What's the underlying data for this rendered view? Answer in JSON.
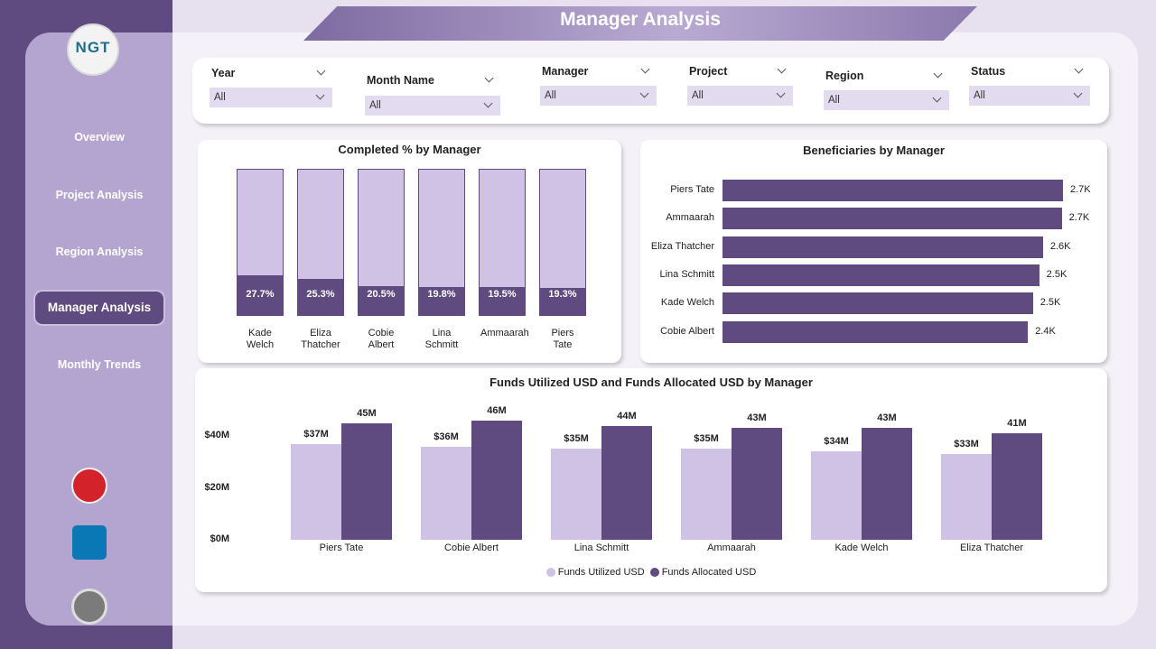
{
  "page": {
    "title": "Manager Analysis",
    "logo": "NGT",
    "nav": [
      "Overview",
      "Project Analysis",
      "Region Analysis",
      "Manager Analysis",
      "Monthly Trends"
    ],
    "filters": [
      {
        "label": "Year",
        "value": "All"
      },
      {
        "label": "Month Name",
        "value": "All"
      },
      {
        "label": "Manager",
        "value": "All"
      },
      {
        "label": "Project",
        "value": "All"
      },
      {
        "label": "Region",
        "value": "All"
      },
      {
        "label": "Status",
        "value": "All"
      }
    ]
  },
  "chart_data": [
    {
      "type": "bar",
      "title": "Completed % by Manager",
      "categories": [
        "Kade Welch",
        "Eliza Thatcher",
        "Cobie Albert",
        "Lina Schmitt",
        "Ammaarah",
        "Piers Tate"
      ],
      "values": [
        27.7,
        25.3,
        20.5,
        19.8,
        19.5,
        19.3
      ],
      "value_labels": [
        "27.7%",
        "25.3%",
        "20.5%",
        "19.8%",
        "19.5%",
        "19.3%"
      ],
      "ylim": [
        0,
        100
      ],
      "color": "#5f4b7f",
      "track_color": "#cfc2e4"
    },
    {
      "type": "hbar",
      "title": "Beneficiaries by Manager",
      "categories": [
        "Piers Tate",
        "Ammaarah",
        "Eliza Thatcher",
        "Lina Schmitt",
        "Kade Welch",
        "Cobie Albert"
      ],
      "values": [
        2720,
        2710,
        2560,
        2530,
        2480,
        2440
      ],
      "value_labels": [
        "2.7K",
        "2.7K",
        "2.6K",
        "2.5K",
        "2.5K",
        "2.4K"
      ],
      "color": "#5f4b7f"
    },
    {
      "type": "grouped_bar",
      "title": "Funds Utilized USD and Funds Allocated USD by Manager",
      "categories": [
        "Piers Tate",
        "Cobie Albert",
        "Lina Schmitt",
        "Ammaarah",
        "Kade Welch",
        "Eliza Thatcher"
      ],
      "series": [
        {
          "name": "Funds Utilized USD",
          "color": "#cfc2e4",
          "values": [
            37000000,
            36000000,
            35000000,
            35000000,
            34000000,
            33000000
          ],
          "value_labels": [
            "$37M",
            "$36M",
            "$35M",
            "$35M",
            "$34M",
            "$33M"
          ]
        },
        {
          "name": "Funds Allocated USD",
          "color": "#5f4b7f",
          "values": [
            45000000,
            46000000,
            44000000,
            43000000,
            43000000,
            41000000
          ],
          "value_labels": [
            "45M",
            "46M",
            "44M",
            "43M",
            "43M",
            "41M"
          ]
        }
      ],
      "ylim": [
        0,
        50000000
      ],
      "yticks": [
        {
          "value": 0,
          "label": "$0M"
        },
        {
          "value": 20000000,
          "label": "$20M"
        },
        {
          "value": 40000000,
          "label": "$40M"
        }
      ],
      "legend": "bottom"
    }
  ]
}
